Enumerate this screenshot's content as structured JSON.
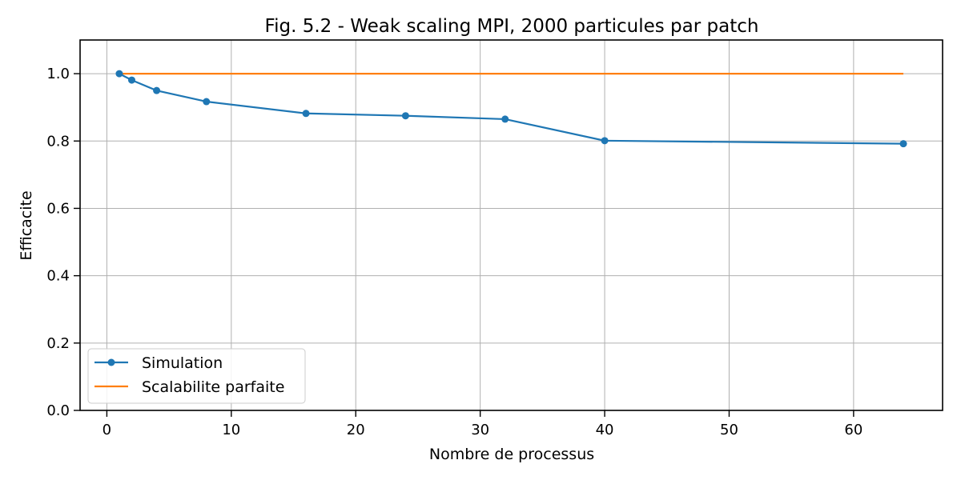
{
  "chart_data": {
    "type": "line",
    "title": "Fig. 5.2 - Weak scaling MPI, 2000 particules par patch",
    "xlabel": "Nombre de processus",
    "ylabel": "Efficacite",
    "xlim": [
      -2.15,
      67.15
    ],
    "ylim": [
      0.0,
      1.1
    ],
    "xticks": [
      0,
      10,
      20,
      30,
      40,
      50,
      60
    ],
    "yticks": [
      0.0,
      0.2,
      0.4,
      0.6,
      0.8,
      1.0
    ],
    "xtick_labels": [
      "0",
      "10",
      "20",
      "30",
      "40",
      "50",
      "60"
    ],
    "ytick_labels": [
      "0.0",
      "0.2",
      "0.4",
      "0.6",
      "0.8",
      "1.0"
    ],
    "grid": true,
    "legend_position": "lower-left",
    "series": [
      {
        "name": "Simulation",
        "color": "#1f77b4",
        "marker": "circle",
        "x": [
          1,
          2,
          4,
          8,
          16,
          24,
          32,
          40,
          64
        ],
        "y": [
          1.0,
          0.981,
          0.95,
          0.917,
          0.882,
          0.875,
          0.865,
          0.801,
          0.792
        ]
      },
      {
        "name": "Scalabilite parfaite",
        "color": "#ff7f0e",
        "marker": "none",
        "x": [
          1,
          64
        ],
        "y": [
          1.0,
          1.0
        ]
      }
    ]
  }
}
